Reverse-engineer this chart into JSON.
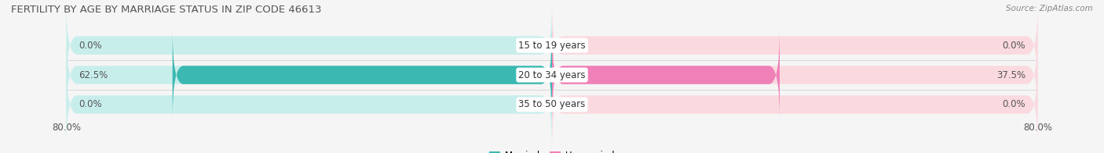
{
  "title": "FERTILITY BY AGE BY MARRIAGE STATUS IN ZIP CODE 46613",
  "source": "Source: ZipAtlas.com",
  "categories": [
    "15 to 19 years",
    "20 to 34 years",
    "35 to 50 years"
  ],
  "married_values": [
    0.0,
    62.5,
    0.0
  ],
  "unmarried_values": [
    0.0,
    37.5,
    0.0
  ],
  "x_min": -80.0,
  "x_max": 80.0,
  "married_color": "#3bb8b2",
  "unmarried_color": "#f080b8",
  "bar_bg_married_color": "#c8eeec",
  "bar_bg_unmarried_color": "#fadadf",
  "background_color": "#f5f5f5",
  "row_bg_color": "#efefef",
  "bar_height": 0.62,
  "title_fontsize": 9.5,
  "source_fontsize": 7.5,
  "label_fontsize": 8.5,
  "category_fontsize": 8.5,
  "tick_fontsize": 8.5,
  "title_color": "#555555",
  "source_color": "#888888",
  "label_color": "#555555",
  "category_color": "#333333"
}
